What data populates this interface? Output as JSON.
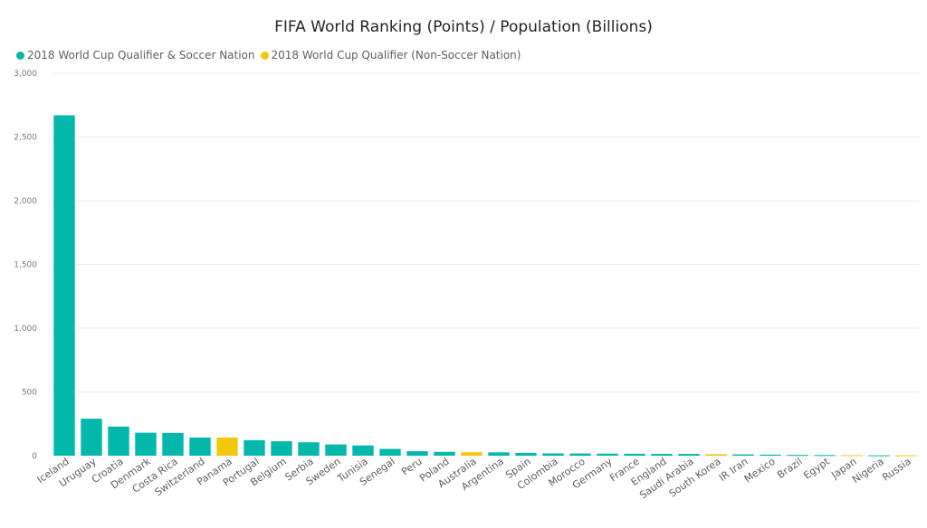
{
  "chart_data": {
    "type": "bar",
    "title": "FIFA World Ranking (Points) / Population (Billions)",
    "xlabel": "",
    "ylabel": "",
    "ylim": [
      0,
      3000
    ],
    "yticks": [
      0,
      500,
      1000,
      1500,
      2000,
      2500,
      3000
    ],
    "ytick_labels": [
      "0",
      "500",
      "1,000",
      "1,500",
      "2,000",
      "2,500",
      "3,000"
    ],
    "grid": true,
    "legend_position": "top-left",
    "legend": [
      {
        "key": "soccer",
        "label": "2018 World Cup Qualifier & Soccer Nation",
        "color": "#01B8AA"
      },
      {
        "key": "nonsoccer",
        "label": "2018 World Cup Qualifier (Non-Soccer Nation)",
        "color": "#F2C80F"
      }
    ],
    "categories": [
      "Iceland",
      "Uruguay",
      "Croatia",
      "Denmark",
      "Costa Rica",
      "Switzerland",
      "Panama",
      "Portugal",
      "Belgium",
      "Serbia",
      "Sweden",
      "Tunisia",
      "Senegal",
      "Peru",
      "Poland",
      "Australia",
      "Argentina",
      "Spain",
      "Colombia",
      "Morocco",
      "Germany",
      "France",
      "England",
      "Saudi Arabia",
      "South Korea",
      "IR Iran",
      "Mexico",
      "Brazil",
      "Egypt",
      "Japan",
      "Nigeria",
      "Russia"
    ],
    "values": [
      2670,
      290,
      228,
      180,
      178,
      142,
      142,
      122,
      113,
      105,
      88,
      80,
      53,
      35,
      30,
      27,
      26,
      22,
      18,
      17,
      16,
      15,
      14,
      14,
      12,
      10,
      8,
      6,
      5,
      4,
      3,
      3
    ],
    "groups": [
      "soccer",
      "soccer",
      "soccer",
      "soccer",
      "soccer",
      "soccer",
      "nonsoccer",
      "soccer",
      "soccer",
      "soccer",
      "soccer",
      "soccer",
      "soccer",
      "soccer",
      "soccer",
      "nonsoccer",
      "soccer",
      "soccer",
      "soccer",
      "soccer",
      "soccer",
      "soccer",
      "soccer",
      "soccer",
      "nonsoccer",
      "soccer",
      "soccer",
      "soccer",
      "soccer",
      "nonsoccer",
      "soccer",
      "nonsoccer"
    ]
  }
}
